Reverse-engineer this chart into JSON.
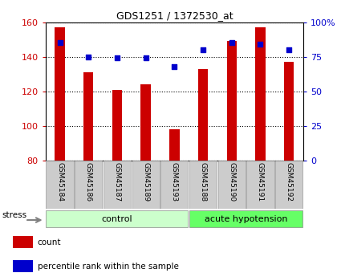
{
  "title": "GDS1251 / 1372530_at",
  "samples": [
    "GSM45184",
    "GSM45186",
    "GSM45187",
    "GSM45189",
    "GSM45193",
    "GSM45188",
    "GSM45190",
    "GSM45191",
    "GSM45192"
  ],
  "counts": [
    157,
    131,
    121,
    124,
    98,
    133,
    149,
    157,
    137
  ],
  "percentiles": [
    85,
    75,
    74,
    74,
    68,
    80,
    85,
    84,
    80
  ],
  "ylim_left": [
    80,
    160
  ],
  "ylim_right": [
    0,
    100
  ],
  "yticks_left": [
    80,
    100,
    120,
    140,
    160
  ],
  "yticks_right": [
    0,
    25,
    50,
    75,
    100
  ],
  "ytick_labels_right": [
    "0",
    "25",
    "50",
    "75",
    "100%"
  ],
  "bar_color": "#cc0000",
  "dot_color": "#0000cc",
  "groups": [
    {
      "label": "control",
      "indices": [
        0,
        1,
        2,
        3,
        4
      ],
      "color": "#ccffcc"
    },
    {
      "label": "acute hypotension",
      "indices": [
        5,
        6,
        7,
        8
      ],
      "color": "#66ff66"
    }
  ],
  "stress_label": "stress",
  "legend_items": [
    {
      "label": "count",
      "color": "#cc0000"
    },
    {
      "label": "percentile rank within the sample",
      "color": "#0000cc"
    }
  ],
  "tick_label_bg": "#cccccc",
  "bar_width": 0.35,
  "xlim": [
    -0.5,
    8.5
  ]
}
